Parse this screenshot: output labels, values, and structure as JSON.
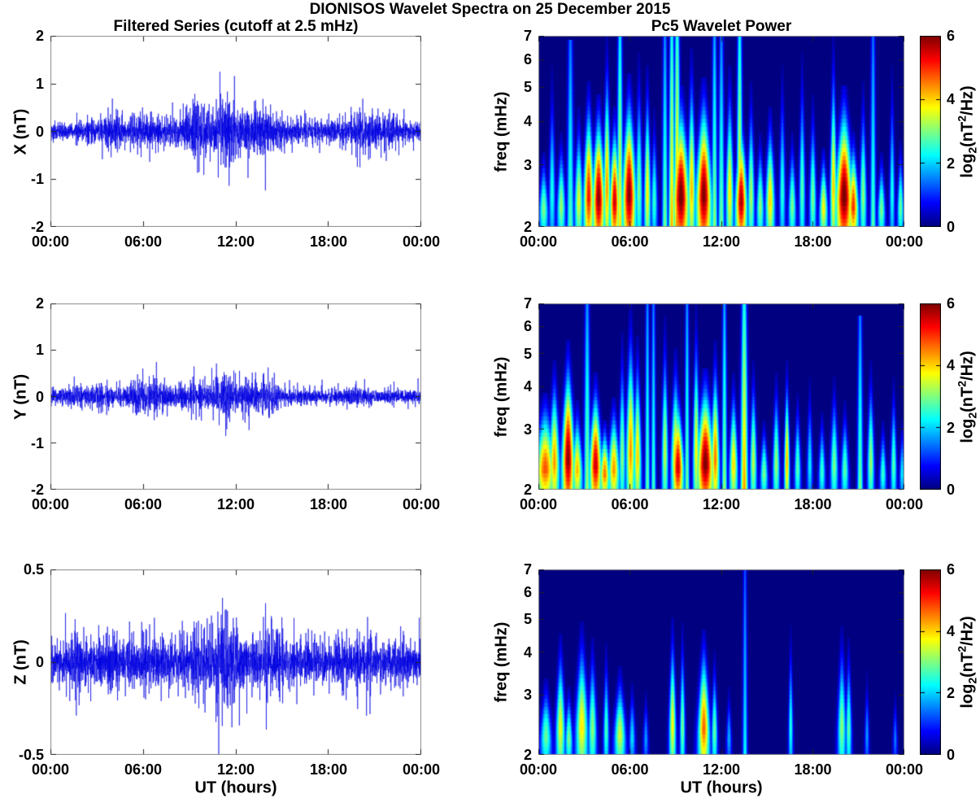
{
  "figure": {
    "title": "DIONISOS Wavelet Spectra on 25 December 2015",
    "left_subtitle": "Filtered Series (cutoff at 2.5 mHz)",
    "right_subtitle": "Pc5 Wavelet Power"
  },
  "axes_shared": {
    "x_tick_labels": [
      "00:00",
      "06:00",
      "12:00",
      "18:00",
      "00:00"
    ],
    "x_hours": [
      0,
      6,
      12,
      18,
      24
    ],
    "xlabel": "UT (hours)"
  },
  "colorbar": {
    "ticks": [
      0,
      2,
      4,
      6
    ],
    "clim": [
      0,
      6
    ],
    "colormap": "jet",
    "label": "log2(nT^2/Hz)",
    "label_parts": [
      {
        "t": "",
        "s": "log"
      },
      {
        "t": "sub",
        "s": "2"
      },
      {
        "t": "",
        "s": "(nT"
      },
      {
        "t": "sup",
        "s": "2"
      },
      {
        "t": "",
        "s": "/Hz)"
      }
    ]
  },
  "colors": {
    "line": "#0000dd",
    "background": "#ffffff",
    "frame": "#8a8a8a",
    "tickmark": "#222222",
    "text": "#000000",
    "heat_background": "#000080"
  },
  "features_format": "[t_hours, f_top_mHz, width_hours, peak_log2_power, columnar_flag]",
  "chart_data": [
    {
      "type": "line",
      "name": "x-filtered-series",
      "ylabel": "X (nT)",
      "ylim": [
        -2,
        2
      ],
      "yticks": [
        2,
        1,
        0,
        -1,
        -2
      ],
      "seed": 20151225,
      "envelope": [
        [
          0,
          0.08
        ],
        [
          1,
          0.09
        ],
        [
          2,
          0.1
        ],
        [
          3,
          0.13
        ],
        [
          3.8,
          0.18
        ],
        [
          4.3,
          0.2
        ],
        [
          5,
          0.14
        ],
        [
          5.8,
          0.2
        ],
        [
          6.5,
          0.14
        ],
        [
          7.5,
          0.13
        ],
        [
          8.5,
          0.16
        ],
        [
          9.3,
          0.33
        ],
        [
          10,
          0.22
        ],
        [
          10.8,
          0.26
        ],
        [
          11.5,
          0.42
        ],
        [
          12.2,
          0.24
        ],
        [
          13,
          0.2
        ],
        [
          14,
          0.27
        ],
        [
          14.8,
          0.14
        ],
        [
          16,
          0.11
        ],
        [
          17.5,
          0.12
        ],
        [
          19,
          0.13
        ],
        [
          20.2,
          0.28
        ],
        [
          21,
          0.17
        ],
        [
          21.7,
          0.2
        ],
        [
          22.5,
          0.12
        ],
        [
          23.5,
          0.1
        ],
        [
          24,
          0.1
        ]
      ]
    },
    {
      "type": "heatmap",
      "name": "x-wavelet-power",
      "ylabel": "freq (mHz)",
      "f_range_mHz": [
        2,
        7
      ],
      "f_scale": "log",
      "f_ticks": [
        7,
        6,
        5,
        4,
        3,
        2
      ],
      "clim": [
        0,
        6
      ],
      "features": [
        [
          0.35,
          3.2,
          0.22,
          3.0
        ],
        [
          0.9,
          5.5,
          0.15,
          2.4
        ],
        [
          1.5,
          3.6,
          0.2,
          3.2
        ],
        [
          2.1,
          6.5,
          0.15,
          2.8,
          1
        ],
        [
          2.65,
          4.2,
          0.2,
          3.6
        ],
        [
          3.3,
          5.0,
          0.25,
          5.2
        ],
        [
          3.95,
          4.6,
          0.3,
          6.0
        ],
        [
          4.5,
          6.6,
          0.16,
          4.4
        ],
        [
          5.0,
          4.2,
          0.24,
          5.6
        ],
        [
          5.35,
          7.2,
          0.13,
          4.0,
          1
        ],
        [
          5.95,
          5.2,
          0.33,
          6.0
        ],
        [
          6.6,
          6.0,
          0.16,
          3.0
        ],
        [
          7.15,
          5.6,
          0.15,
          3.9
        ],
        [
          7.6,
          4.2,
          0.15,
          2.6
        ],
        [
          8.3,
          7.0,
          0.12,
          3.0,
          1
        ],
        [
          8.75,
          7.5,
          0.13,
          4.3,
          1
        ],
        [
          9.1,
          7.5,
          0.14,
          4.6,
          1
        ],
        [
          9.35,
          4.9,
          0.4,
          6.2
        ],
        [
          10.05,
          6.2,
          0.18,
          4.2
        ],
        [
          10.85,
          5.1,
          0.38,
          6.1
        ],
        [
          11.55,
          7.2,
          0.12,
          3.2,
          1
        ],
        [
          12.0,
          6.6,
          0.13,
          3.0,
          1
        ],
        [
          12.55,
          5.6,
          0.18,
          3.9
        ],
        [
          13.2,
          7.4,
          0.13,
          4.2,
          1
        ],
        [
          13.3,
          4.2,
          0.28,
          5.8
        ],
        [
          13.95,
          5.0,
          0.16,
          3.3
        ],
        [
          14.55,
          3.6,
          0.18,
          3.1
        ],
        [
          15.2,
          4.3,
          0.22,
          4.0
        ],
        [
          16.0,
          5.6,
          0.14,
          2.5
        ],
        [
          16.65,
          3.6,
          0.18,
          3.0
        ],
        [
          17.3,
          6.0,
          0.14,
          2.8
        ],
        [
          18.0,
          4.6,
          0.16,
          3.0
        ],
        [
          18.7,
          3.3,
          0.2,
          3.8
        ],
        [
          19.35,
          6.6,
          0.15,
          4.1
        ],
        [
          20.05,
          4.9,
          0.42,
          6.2
        ],
        [
          20.65,
          3.6,
          0.25,
          5.0
        ],
        [
          21.3,
          5.0,
          0.16,
          3.1
        ],
        [
          21.95,
          6.6,
          0.12,
          2.8,
          1
        ],
        [
          22.5,
          3.2,
          0.18,
          3.0
        ],
        [
          23.2,
          5.6,
          0.12,
          2.4
        ],
        [
          23.75,
          3.4,
          0.15,
          2.9
        ]
      ]
    },
    {
      "type": "line",
      "name": "y-filtered-series",
      "ylabel": "Y (nT)",
      "ylim": [
        -2,
        2
      ],
      "yticks": [
        2,
        1,
        0,
        -1,
        -2
      ],
      "seed": 424242,
      "envelope": [
        [
          0,
          0.07
        ],
        [
          1,
          0.09
        ],
        [
          2,
          0.12
        ],
        [
          3,
          0.13
        ],
        [
          4,
          0.1
        ],
        [
          5,
          0.11
        ],
        [
          6,
          0.17
        ],
        [
          7,
          0.18
        ],
        [
          8,
          0.11
        ],
        [
          9,
          0.15
        ],
        [
          9.6,
          0.18
        ],
        [
          10.5,
          0.13
        ],
        [
          11.4,
          0.3
        ],
        [
          12,
          0.17
        ],
        [
          12.7,
          0.19
        ],
        [
          13.5,
          0.13
        ],
        [
          14.1,
          0.22
        ],
        [
          15,
          0.09
        ],
        [
          16,
          0.08
        ],
        [
          17,
          0.07
        ],
        [
          18,
          0.07
        ],
        [
          19,
          0.08
        ],
        [
          19.7,
          0.11
        ],
        [
          20.5,
          0.09
        ],
        [
          21.5,
          0.08
        ],
        [
          22.5,
          0.07
        ],
        [
          23.5,
          0.08
        ],
        [
          24,
          0.08
        ]
      ]
    },
    {
      "type": "heatmap",
      "name": "y-wavelet-power",
      "ylabel": "freq (mHz)",
      "f_range_mHz": [
        2,
        7
      ],
      "f_scale": "log",
      "f_ticks": [
        7,
        6,
        5,
        4,
        3,
        2
      ],
      "clim": [
        0,
        6
      ],
      "features": [
        [
          0.45,
          3.7,
          0.5,
          4.8
        ],
        [
          1.05,
          4.6,
          0.25,
          4.4
        ],
        [
          1.95,
          5.2,
          0.3,
          6.0
        ],
        [
          2.55,
          3.5,
          0.25,
          4.2
        ],
        [
          3.2,
          6.6,
          0.14,
          3.2,
          1
        ],
        [
          3.75,
          4.2,
          0.3,
          5.6
        ],
        [
          4.35,
          3.1,
          0.25,
          4.6
        ],
        [
          4.95,
          3.6,
          0.28,
          4.4
        ],
        [
          5.5,
          5.6,
          0.15,
          3.1
        ],
        [
          6.05,
          6.6,
          0.22,
          4.4
        ],
        [
          6.5,
          5.4,
          0.18,
          4.1
        ],
        [
          7.15,
          7.3,
          0.1,
          2.9,
          1
        ],
        [
          7.55,
          7.3,
          0.1,
          2.7,
          1
        ],
        [
          8.3,
          6.2,
          0.15,
          3.4
        ],
        [
          9.0,
          5.0,
          0.22,
          4.2
        ],
        [
          9.15,
          3.9,
          0.28,
          5.6
        ],
        [
          9.75,
          7.3,
          0.1,
          3.0,
          1
        ],
        [
          10.35,
          6.6,
          0.15,
          3.8
        ],
        [
          10.95,
          4.4,
          0.42,
          6.1
        ],
        [
          11.6,
          5.2,
          0.2,
          4.6
        ],
        [
          12.2,
          7.3,
          0.11,
          3.2,
          1
        ],
        [
          12.8,
          4.2,
          0.2,
          4.0
        ],
        [
          13.5,
          7.4,
          0.16,
          4.4,
          1
        ],
        [
          14.1,
          4.6,
          0.16,
          3.4
        ],
        [
          14.8,
          3.1,
          0.18,
          3.0
        ],
        [
          15.6,
          4.3,
          0.16,
          3.2
        ],
        [
          16.3,
          4.6,
          0.12,
          4.3
        ],
        [
          17.0,
          3.7,
          0.15,
          2.8
        ],
        [
          17.8,
          4.1,
          0.13,
          2.2
        ],
        [
          18.6,
          3.3,
          0.16,
          2.6
        ],
        [
          19.4,
          4.1,
          0.18,
          3.0
        ],
        [
          20.1,
          3.5,
          0.18,
          2.8
        ],
        [
          21.1,
          6.1,
          0.12,
          3.0,
          1
        ],
        [
          21.8,
          4.6,
          0.16,
          3.2
        ],
        [
          22.6,
          3.1,
          0.16,
          2.6
        ],
        [
          23.3,
          4.1,
          0.14,
          2.8
        ],
        [
          23.85,
          3.1,
          0.12,
          2.2
        ]
      ]
    },
    {
      "type": "line",
      "name": "z-filtered-series",
      "ylabel": "Z (nT)",
      "ylim": [
        -0.5,
        0.5
      ],
      "yticks": [
        0.5,
        0,
        -0.5
      ],
      "seed": 777333,
      "envelope": [
        [
          0,
          0.05
        ],
        [
          1,
          0.06
        ],
        [
          1.5,
          0.08
        ],
        [
          2,
          0.06
        ],
        [
          3,
          0.065
        ],
        [
          4,
          0.075
        ],
        [
          5,
          0.06
        ],
        [
          6,
          0.065
        ],
        [
          7,
          0.07
        ],
        [
          8,
          0.065
        ],
        [
          9,
          0.075
        ],
        [
          9.5,
          0.09
        ],
        [
          10.5,
          0.075
        ],
        [
          11.4,
          0.12
        ],
        [
          12,
          0.085
        ],
        [
          13,
          0.075
        ],
        [
          14,
          0.09
        ],
        [
          15,
          0.07
        ],
        [
          16,
          0.06
        ],
        [
          17,
          0.055
        ],
        [
          18,
          0.055
        ],
        [
          19,
          0.06
        ],
        [
          20,
          0.07
        ],
        [
          21,
          0.06
        ],
        [
          22,
          0.055
        ],
        [
          23,
          0.055
        ],
        [
          24,
          0.055
        ]
      ]
    },
    {
      "type": "heatmap",
      "name": "z-wavelet-power",
      "ylabel": "freq (mHz)",
      "f_range_mHz": [
        2,
        7
      ],
      "f_scale": "log",
      "f_ticks": [
        7,
        6,
        5,
        4,
        3,
        2
      ],
      "clim": [
        0,
        6
      ],
      "features": [
        [
          0.5,
          3.3,
          0.28,
          2.9
        ],
        [
          1.45,
          4.4,
          0.22,
          3.7
        ],
        [
          2.0,
          3.1,
          0.18,
          3.0
        ],
        [
          2.85,
          4.7,
          0.3,
          3.9
        ],
        [
          3.55,
          4.3,
          0.2,
          3.1
        ],
        [
          4.45,
          4.1,
          0.13,
          2.7
        ],
        [
          5.35,
          3.5,
          0.28,
          3.5
        ],
        [
          6.15,
          3.2,
          0.15,
          2.1
        ],
        [
          7.05,
          3.0,
          0.12,
          1.7
        ],
        [
          8.8,
          4.9,
          0.16,
          3.8
        ],
        [
          9.45,
          4.7,
          0.12,
          3.0
        ],
        [
          10.85,
          4.5,
          0.28,
          4.7
        ],
        [
          11.55,
          3.9,
          0.14,
          2.9
        ],
        [
          12.5,
          3.1,
          0.12,
          1.8
        ],
        [
          13.55,
          7.3,
          0.1,
          2.3,
          1
        ],
        [
          16.55,
          4.6,
          0.1,
          2.5
        ],
        [
          19.9,
          4.6,
          0.2,
          3.1
        ],
        [
          20.35,
          4.3,
          0.14,
          2.8
        ],
        [
          21.55,
          3.4,
          0.1,
          1.7
        ],
        [
          23.4,
          3.0,
          0.1,
          1.5
        ]
      ]
    }
  ]
}
